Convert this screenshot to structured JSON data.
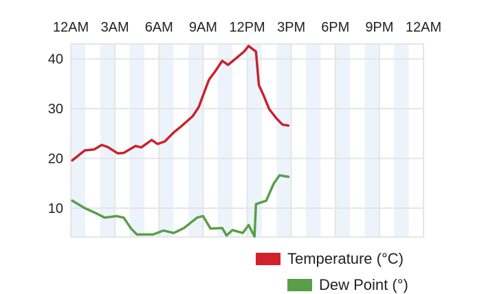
{
  "chart_data": {
    "type": "line",
    "title": "",
    "xlabel": "",
    "ylabel": "",
    "x_unit": "hours since midnight",
    "xlim": [
      0,
      24
    ],
    "ylim": [
      4.2,
      43
    ],
    "x_ticks": [
      0,
      3,
      6,
      9,
      12,
      15,
      18,
      21,
      24
    ],
    "x_tick_labels": [
      "12AM",
      "3AM",
      "6AM",
      "9AM",
      "12PM",
      "3PM",
      "6PM",
      "9PM",
      "12AM"
    ],
    "x_axis_position": "top",
    "y_ticks": [
      10,
      20,
      30,
      40
    ],
    "y_tick_labels": [
      "10",
      "20",
      "30",
      "40"
    ],
    "grid": true,
    "hour_stripes": true,
    "legend_position": "bottom-right",
    "series": [
      {
        "name": "Temperature (°C)",
        "color": "#c8222c",
        "x": [
          0.1,
          0.95,
          1.6,
          2.1,
          2.5,
          3.2,
          3.6,
          4.4,
          4.8,
          5.5,
          5.9,
          6.4,
          7.0,
          7.5,
          8.3,
          8.7,
          9.4,
          9.8,
          10.3,
          10.7,
          11.4,
          11.8,
          12.1,
          12.4,
          12.6,
          12.8,
          13.1,
          13.5,
          14.0,
          14.4,
          14.8
        ],
        "values": [
          19.6,
          21.6,
          21.8,
          22.7,
          22.3,
          21.0,
          21.1,
          22.5,
          22.2,
          23.7,
          22.9,
          23.4,
          25.2,
          26.4,
          28.5,
          30.3,
          35.8,
          37.4,
          39.6,
          38.8,
          40.5,
          41.5,
          42.6,
          41.9,
          41.5,
          34.7,
          32.8,
          29.9,
          28.0,
          26.8,
          26.6
        ]
      },
      {
        "name": "Dew Point (°)",
        "color": "#5a9e47",
        "x": [
          0.1,
          0.95,
          1.7,
          2.3,
          3.1,
          3.6,
          4.1,
          4.5,
          5.6,
          6.3,
          7.0,
          7.7,
          8.6,
          9.0,
          9.5,
          10.3,
          10.6,
          11.0,
          11.7,
          12.1,
          12.5,
          12.6,
          13.3,
          13.8,
          14.2,
          14.8
        ],
        "values": [
          11.5,
          10.0,
          9.0,
          8.1,
          8.4,
          8.1,
          5.9,
          4.7,
          4.7,
          5.5,
          5.0,
          6.0,
          8.1,
          8.4,
          5.9,
          6.0,
          4.5,
          5.6,
          5.0,
          6.6,
          4.3,
          10.8,
          11.5,
          14.9,
          16.6,
          16.3
        ]
      }
    ]
  }
}
